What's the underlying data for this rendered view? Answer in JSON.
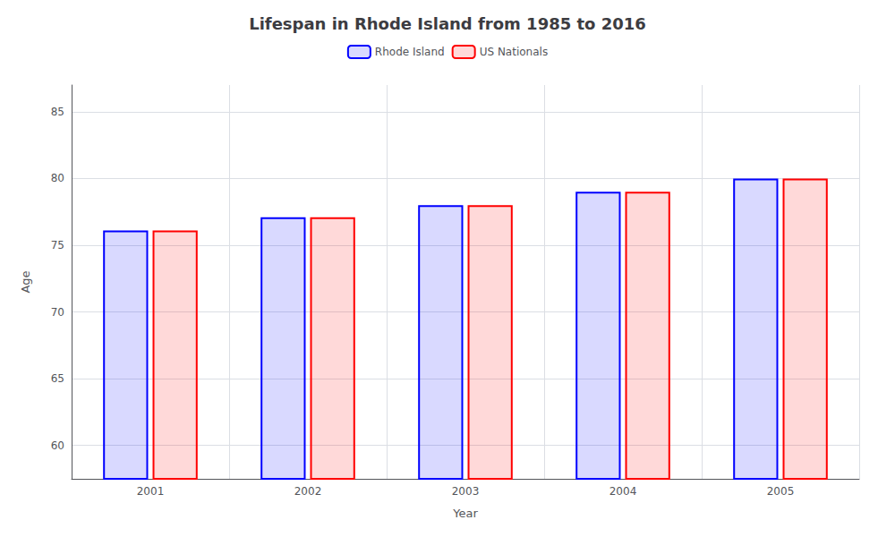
{
  "chart_data": {
    "type": "bar",
    "title": "Lifespan in Rhode Island from 1985 to 2016",
    "xlabel": "Year",
    "ylabel": "Age",
    "categories": [
      "2001",
      "2002",
      "2003",
      "2004",
      "2005"
    ],
    "series": [
      {
        "name": "Rhode Island",
        "color": "#0000ff",
        "values": [
          76.1,
          77.1,
          78.0,
          79.0,
          80.0
        ]
      },
      {
        "name": "US Nationals",
        "color": "#ff0000",
        "values": [
          76.1,
          77.1,
          78.0,
          79.0,
          80.0
        ]
      }
    ],
    "ylim": [
      57.5,
      87
    ],
    "yticks": [
      60,
      65,
      70,
      75,
      80,
      85
    ],
    "grid": true,
    "legend": "top"
  }
}
